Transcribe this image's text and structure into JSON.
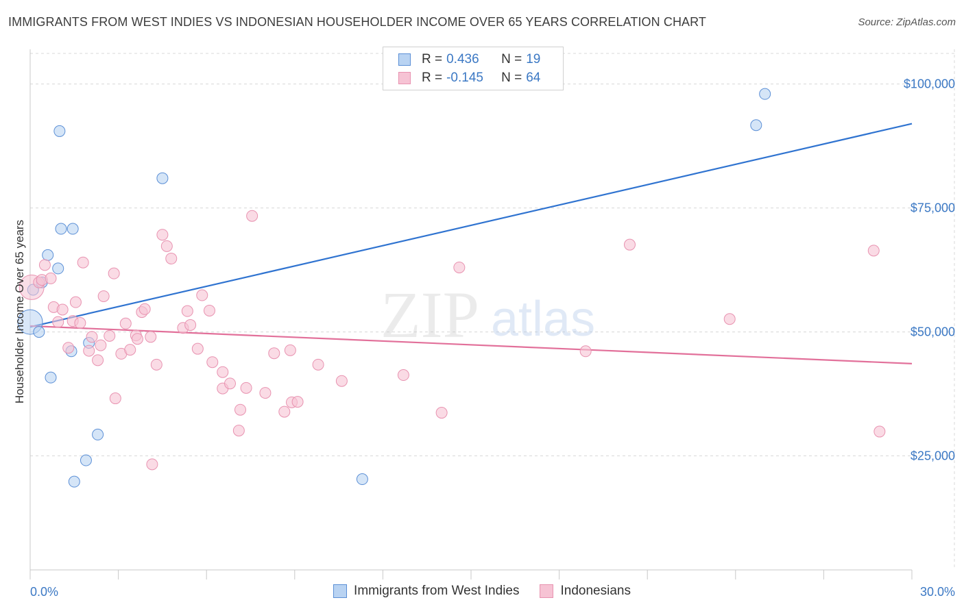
{
  "title": "IMMIGRANTS FROM WEST INDIES VS INDONESIAN HOUSEHOLDER INCOME OVER 65 YEARS CORRELATION CHART",
  "source": "Source: ZipAtlas.com",
  "watermark": {
    "zip": "ZIP",
    "atlas": "atlas"
  },
  "legend": {
    "series1": {
      "r_label": "R =",
      "r_value": "0.436",
      "n_label": "N =",
      "n_value": "19"
    },
    "series2": {
      "r_label": "R =",
      "r_value": "-0.145",
      "n_label": "N =",
      "n_value": "64"
    }
  },
  "colors": {
    "blue_fill": "#b9d3f2",
    "blue_stroke": "#5b8fd6",
    "blue_line": "#2f73d0",
    "pink_fill": "#f6c3d4",
    "pink_stroke": "#e892b0",
    "pink_line": "#e2709a",
    "grid": "#d8d8d8",
    "axis_text": "#3b78c4"
  },
  "chart_data": {
    "type": "scatter",
    "title": "IMMIGRANTS FROM WEST INDIES VS INDONESIAN HOUSEHOLDER INCOME OVER 65 YEARS CORRELATION CHART",
    "xlabel": "",
    "ylabel": "Householder Income Over 65 years",
    "xlim": [
      0,
      30
    ],
    "ylim": [
      2000,
      107000
    ],
    "x_tick_labels": [
      "0.0%",
      "30.0%"
    ],
    "y_ticks": [
      25000,
      50000,
      75000,
      100000
    ],
    "y_tick_labels": [
      "$25,000",
      "$50,000",
      "$75,000",
      "$100,000"
    ],
    "series": [
      {
        "name": "Immigrants from West Indies",
        "color": "blue",
        "trendline": {
          "x": [
            0,
            30
          ],
          "y": [
            51000,
            92000
          ]
        },
        "points": [
          {
            "x": 0.0,
            "y": 52000,
            "size": "large"
          },
          {
            "x": 0.1,
            "y": 58500
          },
          {
            "x": 0.3,
            "y": 50000
          },
          {
            "x": 0.4,
            "y": 60000
          },
          {
            "x": 0.6,
            "y": 65500
          },
          {
            "x": 0.7,
            "y": 40800
          },
          {
            "x": 0.95,
            "y": 62800
          },
          {
            "x": 1.0,
            "y": 90500
          },
          {
            "x": 1.05,
            "y": 70800
          },
          {
            "x": 1.4,
            "y": 46100
          },
          {
            "x": 1.45,
            "y": 70800
          },
          {
            "x": 1.5,
            "y": 19800
          },
          {
            "x": 1.9,
            "y": 24100
          },
          {
            "x": 2.0,
            "y": 47800
          },
          {
            "x": 2.3,
            "y": 29300
          },
          {
            "x": 4.5,
            "y": 81000
          },
          {
            "x": 11.3,
            "y": 20300
          },
          {
            "x": 24.7,
            "y": 91700
          },
          {
            "x": 25.0,
            "y": 98000
          }
        ]
      },
      {
        "name": "Indonesians",
        "color": "pink",
        "trendline": {
          "x": [
            0,
            30
          ],
          "y": [
            51200,
            43600
          ]
        },
        "points": [
          {
            "x": 0.05,
            "y": 59000,
            "size": "large"
          },
          {
            "x": 0.3,
            "y": 60000
          },
          {
            "x": 0.4,
            "y": 60500
          },
          {
            "x": 0.5,
            "y": 63500
          },
          {
            "x": 0.7,
            "y": 60800
          },
          {
            "x": 0.8,
            "y": 55000
          },
          {
            "x": 0.95,
            "y": 52000
          },
          {
            "x": 1.1,
            "y": 54500
          },
          {
            "x": 1.3,
            "y": 46800
          },
          {
            "x": 1.45,
            "y": 52200
          },
          {
            "x": 1.55,
            "y": 56000
          },
          {
            "x": 1.7,
            "y": 51800
          },
          {
            "x": 1.8,
            "y": 64000
          },
          {
            "x": 2.0,
            "y": 46200
          },
          {
            "x": 2.1,
            "y": 49000
          },
          {
            "x": 2.3,
            "y": 44300
          },
          {
            "x": 2.4,
            "y": 47300
          },
          {
            "x": 2.5,
            "y": 57200
          },
          {
            "x": 2.7,
            "y": 49200
          },
          {
            "x": 2.85,
            "y": 61800
          },
          {
            "x": 2.9,
            "y": 36600
          },
          {
            "x": 3.1,
            "y": 45600
          },
          {
            "x": 3.25,
            "y": 51700
          },
          {
            "x": 3.4,
            "y": 46400
          },
          {
            "x": 3.6,
            "y": 49300
          },
          {
            "x": 3.65,
            "y": 48600
          },
          {
            "x": 3.8,
            "y": 54000
          },
          {
            "x": 3.9,
            "y": 54600
          },
          {
            "x": 4.1,
            "y": 49000
          },
          {
            "x": 4.15,
            "y": 23300
          },
          {
            "x": 4.3,
            "y": 43400
          },
          {
            "x": 4.5,
            "y": 69600
          },
          {
            "x": 4.65,
            "y": 67300
          },
          {
            "x": 4.8,
            "y": 64800
          },
          {
            "x": 5.2,
            "y": 50800
          },
          {
            "x": 5.35,
            "y": 54200
          },
          {
            "x": 5.45,
            "y": 51400
          },
          {
            "x": 5.7,
            "y": 46600
          },
          {
            "x": 5.85,
            "y": 57400
          },
          {
            "x": 6.1,
            "y": 54300
          },
          {
            "x": 6.2,
            "y": 43900
          },
          {
            "x": 6.55,
            "y": 41900
          },
          {
            "x": 6.55,
            "y": 38600
          },
          {
            "x": 6.8,
            "y": 39600
          },
          {
            "x": 7.1,
            "y": 30100
          },
          {
            "x": 7.15,
            "y": 34300
          },
          {
            "x": 7.35,
            "y": 38700
          },
          {
            "x": 7.55,
            "y": 73400
          },
          {
            "x": 8.0,
            "y": 37700
          },
          {
            "x": 8.3,
            "y": 45700
          },
          {
            "x": 8.65,
            "y": 33900
          },
          {
            "x": 8.85,
            "y": 46300
          },
          {
            "x": 8.9,
            "y": 35800
          },
          {
            "x": 9.1,
            "y": 35900
          },
          {
            "x": 9.8,
            "y": 43400
          },
          {
            "x": 10.6,
            "y": 40100
          },
          {
            "x": 12.7,
            "y": 41300
          },
          {
            "x": 14.0,
            "y": 33700
          },
          {
            "x": 14.6,
            "y": 63000
          },
          {
            "x": 18.9,
            "y": 46100
          },
          {
            "x": 20.4,
            "y": 67600
          },
          {
            "x": 23.8,
            "y": 52600
          },
          {
            "x": 28.7,
            "y": 66400
          },
          {
            "x": 28.9,
            "y": 29900
          }
        ]
      }
    ]
  }
}
